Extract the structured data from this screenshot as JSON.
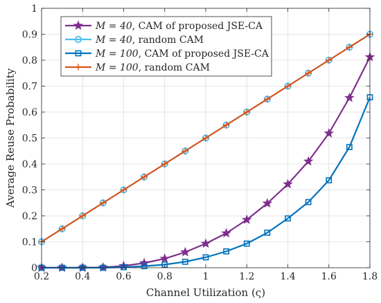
{
  "chart_data": {
    "type": "line",
    "title": "",
    "xlabel": "Channel Utilization (ς)",
    "ylabel": "Average Reuse Probability",
    "xlim": [
      0.2,
      1.8
    ],
    "ylim": [
      0,
      1
    ],
    "xticks": [
      0.2,
      0.4,
      0.6,
      0.8,
      1.0,
      1.2,
      1.4,
      1.6,
      1.8
    ],
    "xtick_labels": [
      "0.2",
      "0.4",
      "0.6",
      "0.8",
      "1",
      "1.2",
      "1.4",
      "1.6",
      "1.8"
    ],
    "yticks": [
      0,
      0.1,
      0.2,
      0.3,
      0.4,
      0.5,
      0.6,
      0.7,
      0.8,
      0.9,
      1
    ],
    "ytick_labels": [
      "0",
      "0.1",
      "0.2",
      "0.3",
      "0.4",
      "0.5",
      "0.6",
      "0.7",
      "0.8",
      "0.9",
      "1"
    ],
    "grid": true,
    "legend_position": "top-left",
    "x": [
      0.2,
      0.3,
      0.4,
      0.5,
      0.6,
      0.7,
      0.8,
      0.9,
      1.0,
      1.1,
      1.2,
      1.3,
      1.4,
      1.5,
      1.6,
      1.7,
      1.8
    ],
    "series": [
      {
        "name": "M = 40, CAM of proposed JSE-CA",
        "legend_math": "M = 40",
        "legend_text": ", CAM of proposed JSE-CA",
        "color": "#7E2F8E",
        "marker": "star",
        "values": [
          0,
          0,
          0,
          0.001,
          0.007,
          0.018,
          0.035,
          0.06,
          0.093,
          0.133,
          0.185,
          0.248,
          0.322,
          0.41,
          0.518,
          0.655,
          0.812
        ]
      },
      {
        "name": "M = 40, random CAM",
        "legend_math": "M = 40",
        "legend_text": ", random CAM",
        "color": "#4DBEEE",
        "marker": "circle",
        "values": [
          0.1,
          0.15,
          0.2,
          0.25,
          0.3,
          0.35,
          0.4,
          0.45,
          0.5,
          0.55,
          0.6,
          0.65,
          0.7,
          0.75,
          0.8,
          0.85,
          0.9
        ]
      },
      {
        "name": "M = 100, CAM of proposed JSE-CA",
        "legend_math": "M = 100",
        "legend_text": ", CAM of proposed JSE-CA",
        "color": "#0072BD",
        "marker": "square",
        "values": [
          0,
          0,
          0,
          0,
          0.002,
          0.006,
          0.012,
          0.023,
          0.04,
          0.063,
          0.093,
          0.135,
          0.19,
          0.253,
          0.337,
          0.465,
          0.657
        ]
      },
      {
        "name": "M = 100, random CAM",
        "legend_math": "M = 100",
        "legend_text": ", random CAM",
        "color": "#D95319",
        "marker": "plus",
        "values": [
          0.1,
          0.15,
          0.2,
          0.25,
          0.3,
          0.35,
          0.4,
          0.45,
          0.5,
          0.55,
          0.6,
          0.65,
          0.7,
          0.75,
          0.8,
          0.85,
          0.9
        ]
      }
    ]
  }
}
